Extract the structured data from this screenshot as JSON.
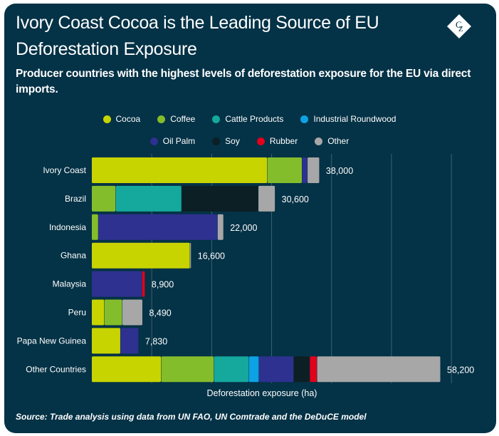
{
  "title": "Ivory Coast Cocoa is the Leading Source of EU Deforestation Exposure",
  "subtitle": "Producer countries with the highest levels of deforestation exposure for the EU via direct imports.",
  "logo": {
    "text": "CZ",
    "icon": "cz-diamond-logo"
  },
  "footer": "Source: Trade analysis using data from UN FAO, UN Comtrade and the DeDuCE model",
  "chart_data": {
    "type": "bar",
    "orientation": "horizontal",
    "stacked": true,
    "title": "Ivory Coast Cocoa is the Leading Source of EU Deforestation Exposure",
    "subtitle": "Producer countries with the highest levels of deforestation exposure for the EU via direct imports.",
    "xlabel": "Deforestation exposure (ha)",
    "ylabel": "",
    "xlim": [
      0,
      60000
    ],
    "gridline_step": 10000,
    "grid": true,
    "legend_position": "top",
    "categories": [
      "Ivory Coast",
      "Brazil",
      "Indonesia",
      "Ghana",
      "Malaysia",
      "Peru",
      "Papa New Guinea",
      "Other Countries"
    ],
    "totals": [
      38000,
      30600,
      22000,
      16600,
      8900,
      8490,
      7830,
      58200
    ],
    "total_labels": [
      "38,000",
      "30,600",
      "22,000",
      "16,600",
      "8,900",
      "8,490",
      "7,830",
      "58,200"
    ],
    "series": [
      {
        "name": "Cocoa",
        "color": "#c8d400",
        "values": [
          29300,
          0,
          0,
          16400,
          0,
          2100,
          4800,
          11600
        ]
      },
      {
        "name": "Coffee",
        "color": "#84bd2b",
        "values": [
          5800,
          4000,
          1100,
          0,
          0,
          3000,
          0,
          8800
        ]
      },
      {
        "name": "Cattle Products",
        "color": "#15a89c",
        "values": [
          0,
          11000,
          0,
          0,
          0,
          0,
          0,
          5800
        ]
      },
      {
        "name": "Industrial Roundwood",
        "color": "#0ca2e4",
        "values": [
          0,
          0,
          0,
          0,
          0,
          0,
          0,
          1700
        ]
      },
      {
        "name": "Oil Palm",
        "color": "#2e3190",
        "values": [
          900,
          0,
          19900,
          0,
          8400,
          0,
          3030,
          5800
        ]
      },
      {
        "name": "Soy",
        "color": "#0c1f24",
        "values": [
          0,
          12800,
          0,
          0,
          0,
          0,
          0,
          2700
        ]
      },
      {
        "name": "Rubber",
        "color": "#e2001a",
        "values": [
          0,
          0,
          0,
          0,
          500,
          0,
          0,
          1200
        ]
      },
      {
        "name": "Other",
        "color": "#a7a7a7",
        "values": [
          2000,
          2800,
          1000,
          200,
          0,
          3390,
          0,
          20600
        ]
      }
    ]
  }
}
